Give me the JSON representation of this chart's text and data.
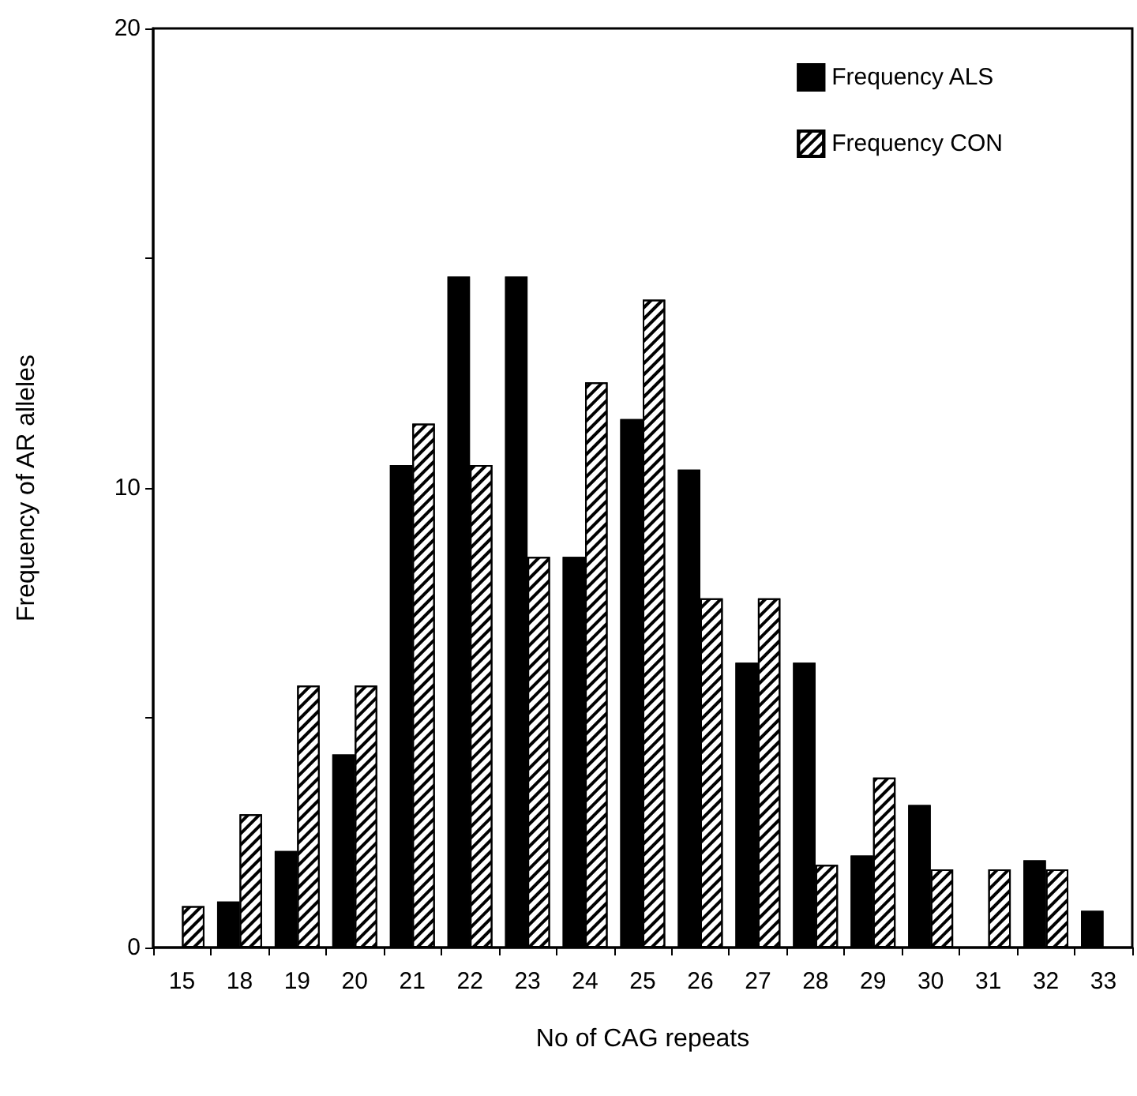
{
  "chart_data": {
    "type": "bar",
    "xlabel": "No of CAG repeats",
    "ylabel": "Frequency of AR alleles",
    "categories": [
      "15",
      "18",
      "19",
      "20",
      "21",
      "22",
      "23",
      "24",
      "25",
      "26",
      "27",
      "28",
      "29",
      "30",
      "31",
      "32",
      "33"
    ],
    "series": [
      {
        "name": "Frequency ALS",
        "color": "#000000",
        "values": [
          0,
          1.0,
          2.1,
          4.2,
          10.5,
          14.6,
          14.6,
          8.5,
          11.5,
          10.4,
          6.2,
          6.2,
          2.0,
          3.1,
          0,
          1.9,
          0.8
        ]
      },
      {
        "name": "Frequency CON",
        "color": "#ffffff",
        "values": [
          0.9,
          2.9,
          5.7,
          5.7,
          11.4,
          10.5,
          8.5,
          12.3,
          14.1,
          7.6,
          7.6,
          1.8,
          3.7,
          1.7,
          1.7,
          1.7,
          0
        ]
      }
    ],
    "ylim": [
      0,
      20
    ],
    "yticks": [
      0,
      {
        "value": 5,
        "label": null
      },
      10,
      {
        "value": 15,
        "label": null
      },
      20
    ],
    "grid": false,
    "legend": "top right"
  }
}
